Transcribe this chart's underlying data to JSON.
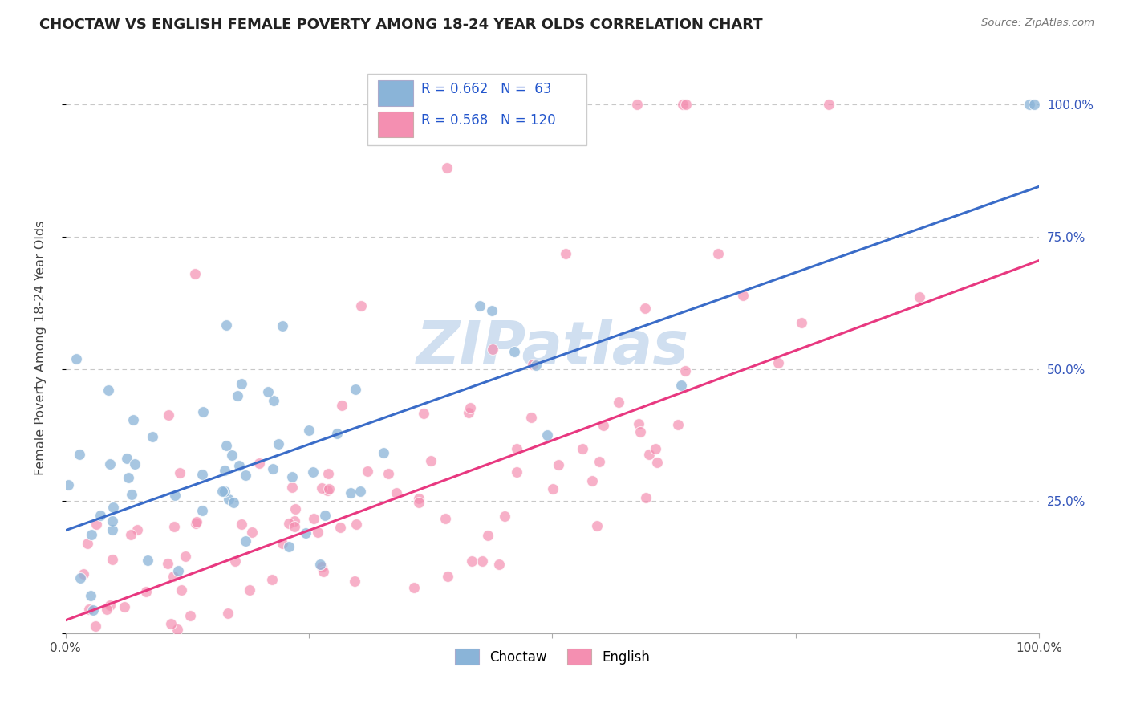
{
  "title": "CHOCTAW VS ENGLISH FEMALE POVERTY AMONG 18-24 YEAR OLDS CORRELATION CHART",
  "source": "Source: ZipAtlas.com",
  "ylabel": "Female Poverty Among 18-24 Year Olds",
  "choctaw_R": 0.662,
  "choctaw_N": 63,
  "english_R": 0.568,
  "english_N": 120,
  "choctaw_color": "#8ab4d8",
  "english_color": "#f48fb1",
  "choctaw_line_color": "#3a6cc8",
  "english_line_color": "#e83880",
  "watermark": "ZIPatlas",
  "watermark_color": "#d0dff0",
  "background_color": "#ffffff",
  "grid_color": "#c8c8c8",
  "legend_color": "#2255cc",
  "choctaw_line_slope": 0.65,
  "choctaw_line_intercept": 0.195,
  "english_line_slope": 0.68,
  "english_line_intercept": 0.025
}
